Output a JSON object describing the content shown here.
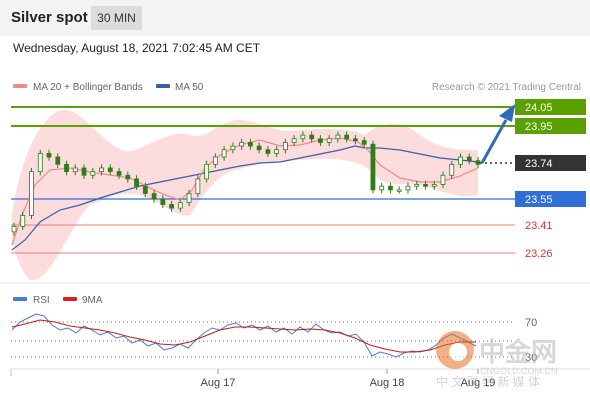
{
  "header": {
    "title": "Silver spot",
    "timeframe": "30 MIN"
  },
  "datetime": "Wednesday, August 18, 2021 7:02:45 AM CET",
  "legend": {
    "ma20_label": "MA 20 + Bollinger Bands",
    "ma50_label": "MA 50",
    "credit": "Research © 2021 Trading Central"
  },
  "colors": {
    "resistance": "#5aa000",
    "pivot": "#2f6fd6",
    "support": "#ef3b3b",
    "ma20": "#f08a8a",
    "ma50": "#3a5fa8",
    "bands": "#fbd6d6",
    "candle": "#2f7d1a",
    "rsi": "#4a7bd0",
    "rsi_ma": "#c41a1a"
  },
  "levels": [
    {
      "value": "24.05",
      "type": "resistance"
    },
    {
      "value": "23.95",
      "type": "resistance"
    },
    {
      "value": "23.74",
      "type": "last"
    },
    {
      "value": "23.55",
      "type": "pivot"
    },
    {
      "value": "23.41",
      "type": "support"
    },
    {
      "value": "23.26",
      "type": "support"
    }
  ],
  "rsi_legend": {
    "rsi": "RSI",
    "ma": "9MA"
  },
  "rsi_levels": {
    "upper": "70",
    "lower": "30"
  },
  "x_labels": [
    "Aug 17",
    "Aug 18",
    "Aug 19"
  ],
  "watermark": {
    "logo": "中金网",
    "url": "CNGOLD.COM.CN",
    "tagline": "中 文 财 经 新 媒 体"
  },
  "chart_data": {
    "type": "candlestick",
    "title": "Silver spot",
    "interval": "30 MIN",
    "x_ticks": [
      "Aug 17",
      "Aug 18",
      "Aug 19"
    ],
    "levels": [
      24.05,
      23.95,
      23.74,
      23.55,
      23.41,
      23.26
    ],
    "last_price": 23.74,
    "pivot": 23.55,
    "resistances": [
      23.95,
      24.05
    ],
    "supports": [
      23.41,
      23.26
    ],
    "closes": [
      23.4,
      23.46,
      23.7,
      23.8,
      23.78,
      23.74,
      23.7,
      23.72,
      23.68,
      23.7,
      23.72,
      23.7,
      23.68,
      23.66,
      23.62,
      23.58,
      23.55,
      23.52,
      23.5,
      23.53,
      23.58,
      23.66,
      23.74,
      23.78,
      23.82,
      23.84,
      23.86,
      23.84,
      23.82,
      23.8,
      23.82,
      23.86,
      23.88,
      23.9,
      23.88,
      23.86,
      23.88,
      23.9,
      23.88,
      23.87,
      23.85,
      23.6,
      23.62,
      23.6,
      23.6,
      23.62,
      23.63,
      23.62,
      23.63,
      23.68,
      23.74,
      23.78,
      23.76,
      23.74
    ],
    "rsi": {
      "upper": 70,
      "lower": 30
    }
  }
}
